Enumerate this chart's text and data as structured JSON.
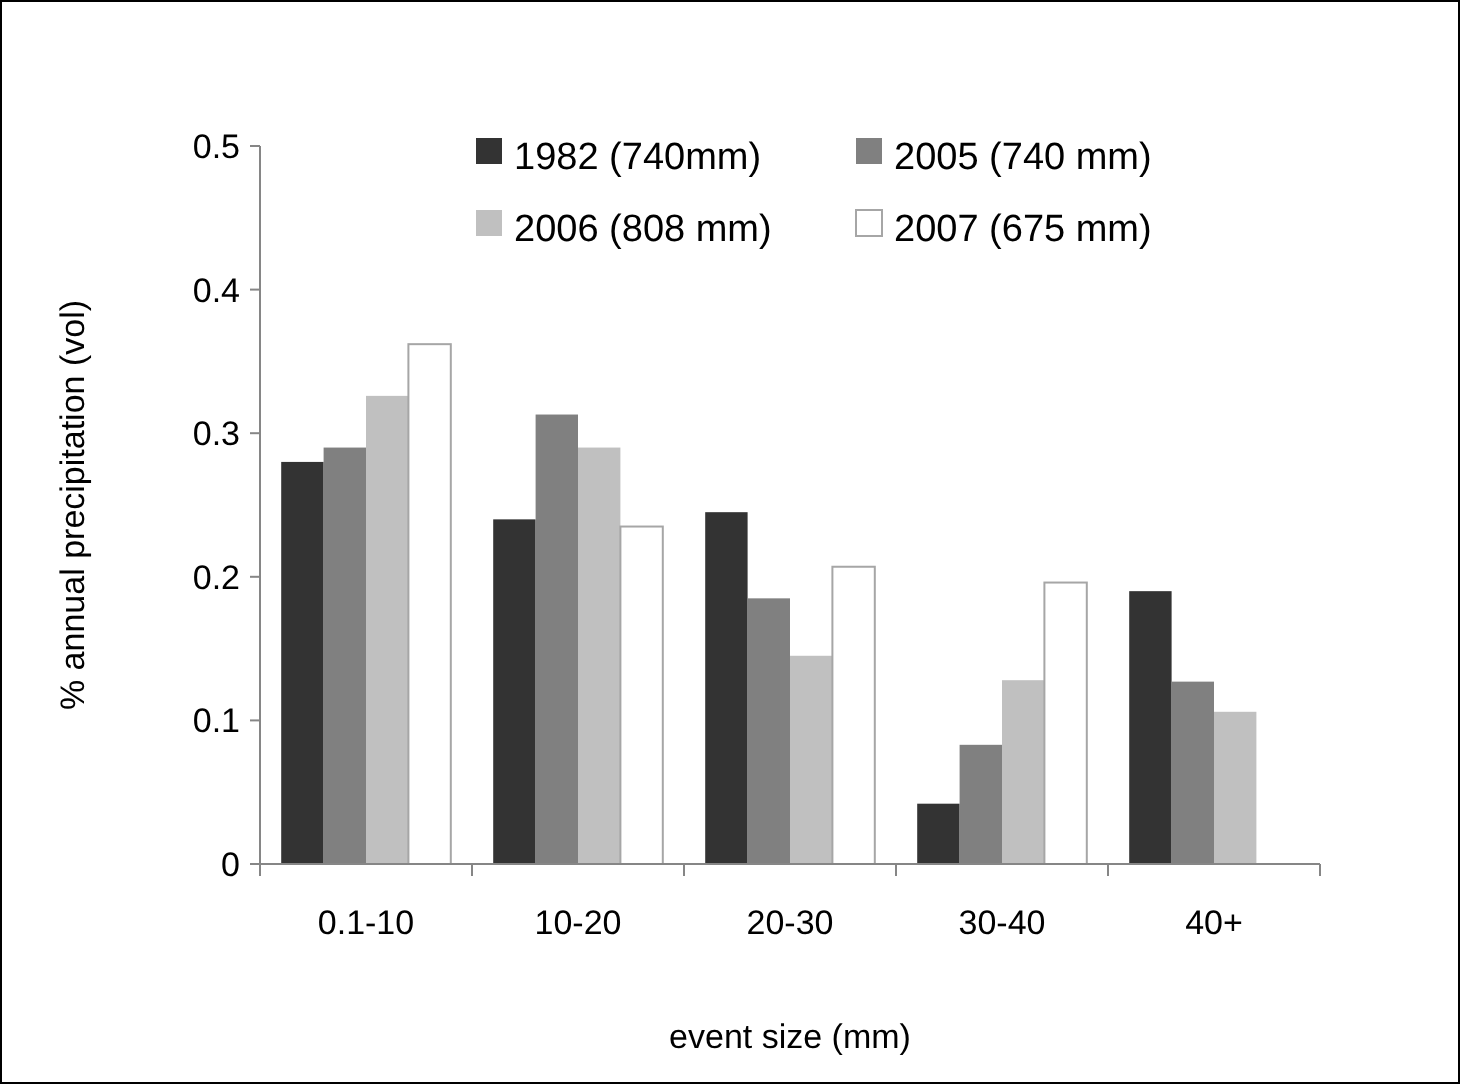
{
  "chart_data": {
    "type": "bar",
    "xlabel": "event size (mm)",
    "ylabel": "% annual precipitation (vol)",
    "categories": [
      "0.1-10",
      "10-20",
      "20-30",
      "30-40",
      "40+"
    ],
    "series": [
      {
        "name": "1982 (740mm)",
        "color": "#333333",
        "values": [
          0.28,
          0.24,
          0.245,
          0.042,
          0.19
        ]
      },
      {
        "name": "2005 (740 mm)",
        "color": "#808080",
        "values": [
          0.29,
          0.313,
          0.185,
          0.083,
          0.127
        ]
      },
      {
        "name": "2006 (808 mm)",
        "color": "#c0c0c0",
        "values": [
          0.326,
          0.29,
          0.145,
          0.128,
          0.106
        ]
      },
      {
        "name": "2007 (675 mm)",
        "color": "#ffffff",
        "values": [
          0.362,
          0.235,
          0.207,
          0.196,
          null
        ]
      }
    ],
    "ylim": [
      0,
      0.5
    ],
    "yticks": [
      {
        "value": 0,
        "label": "0"
      },
      0.1,
      0.2,
      0.3,
      0.4,
      0.5
    ],
    "legend": "top",
    "grid": false
  }
}
